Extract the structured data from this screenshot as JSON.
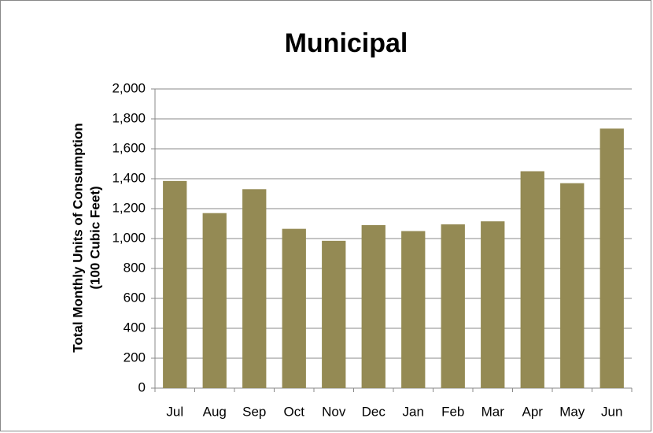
{
  "chart_data": {
    "type": "bar",
    "title": "Municipal",
    "ylabel": [
      "Total Monthly Units of Consumption",
      "(100 Cubic Feet)"
    ],
    "categories": [
      "Jul",
      "Aug",
      "Sep",
      "Oct",
      "Nov",
      "Dec",
      "Jan",
      "Feb",
      "Mar",
      "Apr",
      "May",
      "Jun"
    ],
    "values": [
      1385,
      1170,
      1330,
      1065,
      985,
      1090,
      1050,
      1095,
      1115,
      1450,
      1370,
      1735
    ],
    "color": "#948a54",
    "ylim": [
      0,
      2000
    ],
    "yticks": [
      0,
      200,
      400,
      600,
      800,
      {
        "value": 1000,
        "label": "1,000"
      },
      {
        "value": 1200,
        "label": "1,200"
      },
      {
        "value": 1400,
        "label": "1,400"
      },
      {
        "value": 1600,
        "label": "1,600"
      },
      {
        "value": 1800,
        "label": "1,800"
      },
      {
        "value": 2000,
        "label": "2,000"
      }
    ],
    "grid": true
  }
}
